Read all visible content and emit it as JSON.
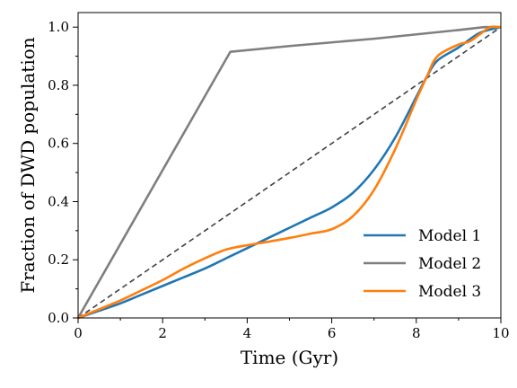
{
  "chart_data": {
    "type": "line",
    "xlabel": "Time (Gyr)",
    "ylabel": "Fraction of DWD population",
    "xlim": [
      0,
      10
    ],
    "ylim": [
      0,
      1.05
    ],
    "xticks": [
      0,
      2,
      4,
      6,
      8,
      10
    ],
    "xtick_labels": [
      "0",
      "2",
      "4",
      "6",
      "8",
      "10"
    ],
    "yticks": [
      0.0,
      0.2,
      0.4,
      0.6,
      0.8,
      1.0
    ],
    "ytick_labels": [
      "0.0",
      "0.2",
      "0.4",
      "0.6",
      "0.8",
      "1.0"
    ],
    "grid": false,
    "legend_position": "lower-right",
    "series": [
      {
        "name": "Model 1",
        "color": "#1f77b4",
        "x": [
          0,
          0.5,
          1,
          1.5,
          2,
          2.5,
          3,
          3.5,
          4,
          4.5,
          5,
          5.5,
          6,
          6.5,
          7,
          7.5,
          8,
          8.25,
          8.5,
          9,
          9.5,
          10
        ],
        "y": [
          0.0,
          0.025,
          0.05,
          0.08,
          0.11,
          0.14,
          0.17,
          0.205,
          0.24,
          0.275,
          0.31,
          0.345,
          0.38,
          0.43,
          0.51,
          0.62,
          0.76,
          0.83,
          0.885,
          0.93,
          0.98,
          1.0
        ]
      },
      {
        "name": "Model 2",
        "color": "#7f7f7f",
        "x": [
          0,
          3.6,
          5,
          7,
          9,
          9.6,
          10
        ],
        "y": [
          0.0,
          0.915,
          0.935,
          0.96,
          0.99,
          1.0,
          1.0
        ]
      },
      {
        "name": "Model 3",
        "color": "#ff7f0e",
        "x": [
          0,
          0.5,
          1,
          1.5,
          2,
          2.5,
          3,
          3.5,
          4,
          4.5,
          5,
          5.5,
          6,
          6.5,
          7,
          7.5,
          8,
          8.25,
          8.5,
          9,
          9.25,
          9.5,
          9.75,
          10
        ],
        "y": [
          0.0,
          0.03,
          0.06,
          0.095,
          0.13,
          0.17,
          0.205,
          0.235,
          0.25,
          0.262,
          0.275,
          0.29,
          0.305,
          0.35,
          0.44,
          0.58,
          0.75,
          0.83,
          0.9,
          0.94,
          0.95,
          0.975,
          1.0,
          1.0
        ]
      },
      {
        "name": "",
        "color": "#404040",
        "dashed": true,
        "x": [
          0,
          10
        ],
        "y": [
          0,
          1
        ]
      }
    ]
  }
}
